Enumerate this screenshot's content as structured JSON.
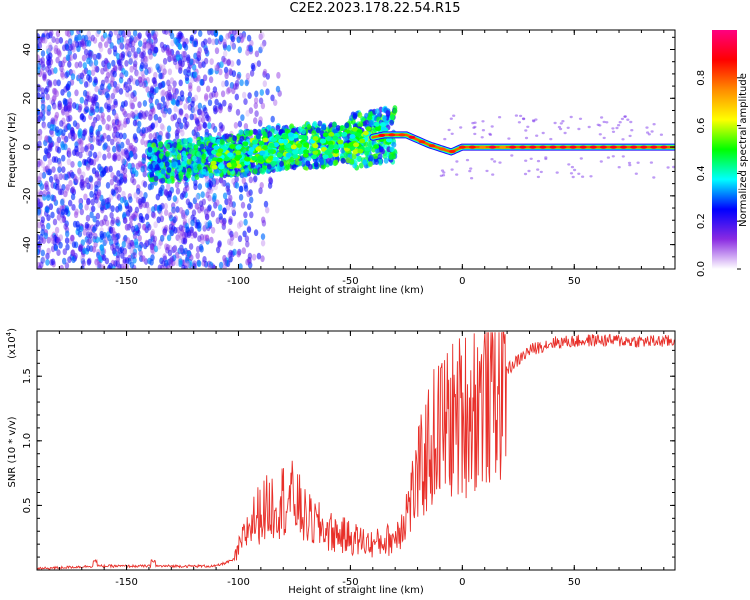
{
  "figure_title": "C2E2.2023.178.22.54.R15",
  "chart_data": [
    {
      "type": "heatmap",
      "xlabel": "Height of straight line (km)",
      "ylabel": "Frequency (Hz)",
      "xlim": [
        -190,
        95
      ],
      "ylim": [
        -50,
        48
      ],
      "xticks": [
        "-150",
        "-100",
        "-50",
        "0",
        "50"
      ],
      "yticks": [
        "-40",
        "-20",
        "0",
        "20",
        "40"
      ],
      "colorbar": {
        "label": "Normalized spectral amplitude",
        "range": [
          0,
          1
        ],
        "ticks": [
          "0.0",
          "0.2",
          "0.4",
          "0.6",
          "0.8"
        ],
        "colormap": "rainbow",
        "colors": [
          "#ffffff",
          "#8a2be2",
          "#0000ff",
          "#00ffff",
          "#00ff00",
          "#ffff00",
          "#ff8c00",
          "#ff0000",
          "#ff0080"
        ]
      },
      "ridge": {
        "description_points": [
          {
            "x": -165,
            "y": -5
          },
          {
            "x": -130,
            "y": -6
          },
          {
            "x": -100,
            "y": -3
          },
          {
            "x": -80,
            "y": 0
          },
          {
            "x": -60,
            "y": 1
          },
          {
            "x": -45,
            "y": 3
          },
          {
            "x": -35,
            "y": 5
          },
          {
            "x": -25,
            "y": 5
          },
          {
            "x": -15,
            "y": 1
          },
          {
            "x": -5,
            "y": -2
          },
          {
            "x": 0,
            "y": 0
          },
          {
            "x": 20,
            "y": 0
          },
          {
            "x": 50,
            "y": 0
          },
          {
            "x": 95,
            "y": 0
          }
        ]
      }
    },
    {
      "type": "line",
      "xlabel": "Height of straight line (km)",
      "ylabel": "SNR (10 * v/v)",
      "y_multiplier": "(x10",
      "y_multiplier_exp": "4",
      "y_multiplier_close": ")",
      "xlim": [
        -190,
        95
      ],
      "ylim": [
        0,
        1.85
      ],
      "xticks": [
        "-150",
        "-100",
        "-50",
        "0",
        "50"
      ],
      "yticks": [
        "0.5",
        "1.0",
        "1.5"
      ],
      "series": [
        {
          "color": "#e8302a",
          "points": [
            {
              "x": -190,
              "y": 0.01
            },
            {
              "x": -165,
              "y": 0.03
            },
            {
              "x": -140,
              "y": 0.03
            },
            {
              "x": -110,
              "y": 0.03
            },
            {
              "x": -102,
              "y": 0.08
            },
            {
              "x": -95,
              "y": 0.35
            },
            {
              "x": -90,
              "y": 0.45
            },
            {
              "x": -80,
              "y": 0.55
            },
            {
              "x": -75,
              "y": 0.55
            },
            {
              "x": -70,
              "y": 0.4
            },
            {
              "x": -60,
              "y": 0.3
            },
            {
              "x": -50,
              "y": 0.25
            },
            {
              "x": -40,
              "y": 0.2
            },
            {
              "x": -30,
              "y": 0.25
            },
            {
              "x": -25,
              "y": 0.45
            },
            {
              "x": -20,
              "y": 0.7
            },
            {
              "x": -15,
              "y": 0.95
            },
            {
              "x": -10,
              "y": 1.1
            },
            {
              "x": 0,
              "y": 1.2
            },
            {
              "x": 10,
              "y": 1.35
            },
            {
              "x": 20,
              "y": 1.55
            },
            {
              "x": 30,
              "y": 1.7
            },
            {
              "x": 40,
              "y": 1.76
            },
            {
              "x": 60,
              "y": 1.78
            },
            {
              "x": 80,
              "y": 1.77
            },
            {
              "x": 95,
              "y": 1.77
            }
          ]
        }
      ]
    }
  ]
}
